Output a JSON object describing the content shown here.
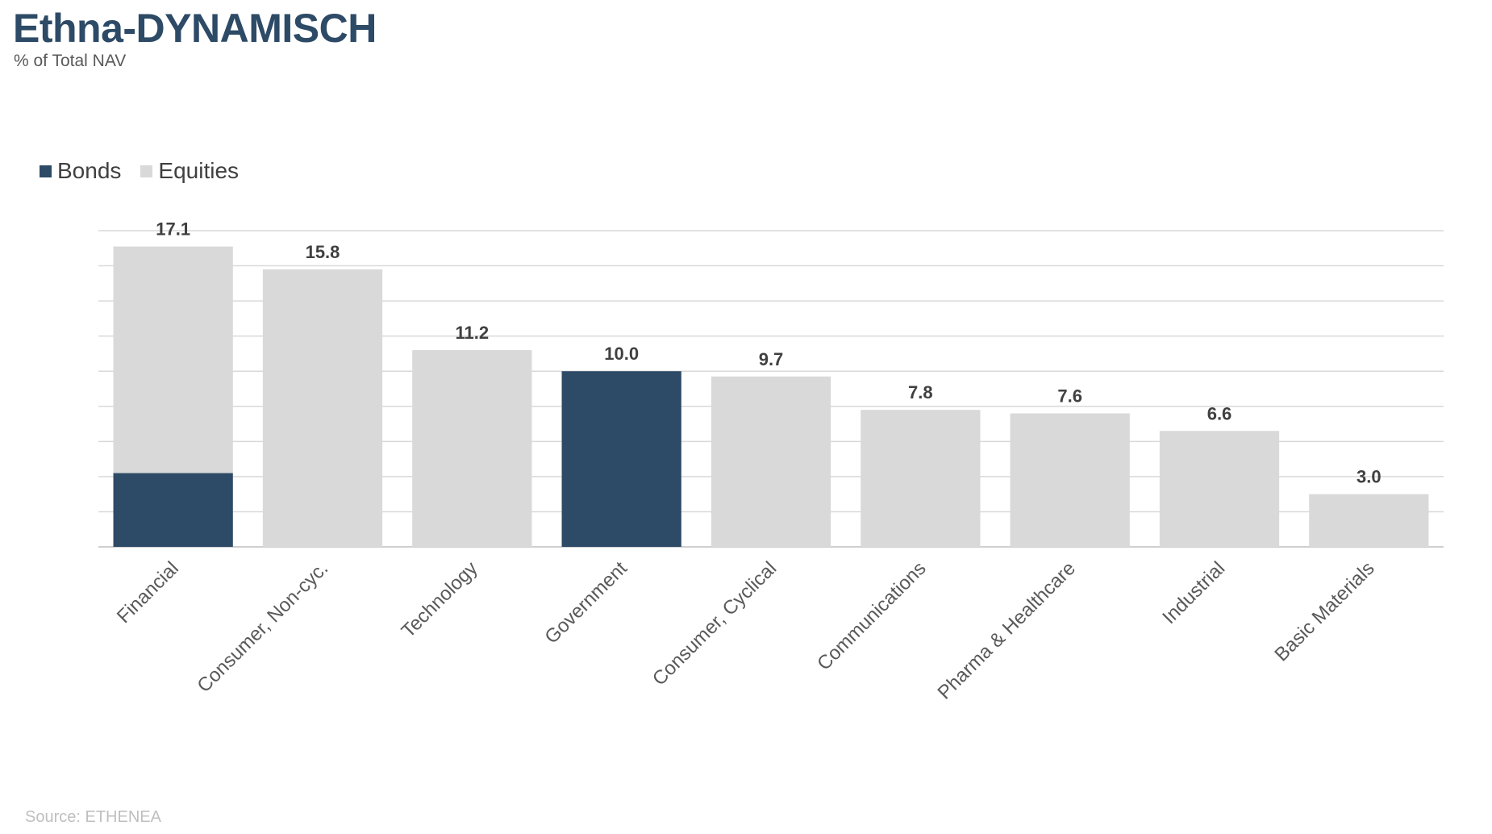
{
  "header": {
    "title": "Ethna-DYNAMISCH",
    "subtitle": "% of Total NAV"
  },
  "legend": {
    "items": [
      {
        "label": "Bonds",
        "color": "#2d4a66"
      },
      {
        "label": "Equities",
        "color": "#d9d9d9"
      }
    ]
  },
  "footer": {
    "source": "Source: ETHENEA"
  },
  "chart_data": {
    "type": "bar",
    "stacked": true,
    "categories": [
      "Financial",
      "Consumer, Non-cyc.",
      "Technology",
      "Government",
      "Consumer, Cyclical",
      "Communications",
      "Pharma & Healthcare",
      "Industrial",
      "Basic Materials"
    ],
    "series": [
      {
        "name": "Bonds",
        "color": "#2d4a66",
        "values": [
          4.2,
          0,
          0,
          10.0,
          0,
          0,
          0,
          0,
          0
        ]
      },
      {
        "name": "Equities",
        "color": "#d9d9d9",
        "values": [
          12.9,
          15.8,
          11.2,
          0,
          9.7,
          7.8,
          7.6,
          6.6,
          3.0
        ]
      }
    ],
    "totals": [
      "17.1",
      "15.8",
      "11.2",
      "10.0",
      "9.7",
      "7.8",
      "7.6",
      "6.6",
      "3.0"
    ],
    "ylim": [
      0,
      18
    ],
    "gridline_step": 2,
    "grid": true,
    "y_axis_labels": false,
    "legend_position": "top-left"
  }
}
